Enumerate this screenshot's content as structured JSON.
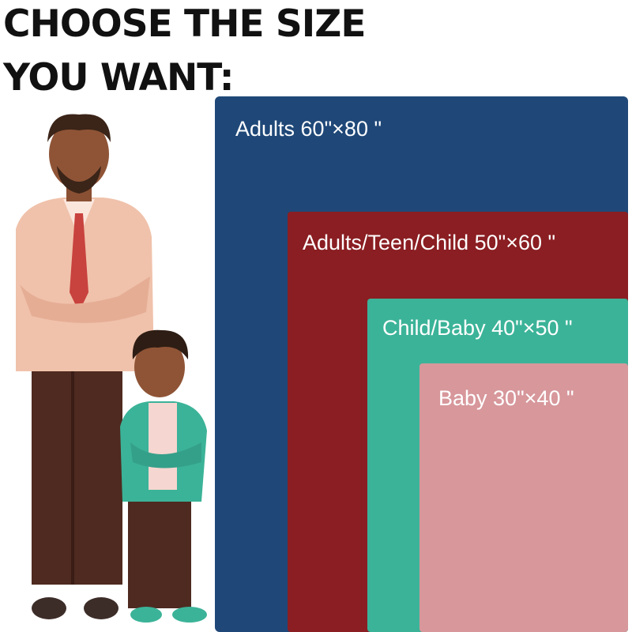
{
  "header": {
    "title": [
      "CHOOSE THE SIZE",
      "YOU WANT:"
    ]
  },
  "sizes": [
    {
      "label": "Adults 60\"×80 \""
    },
    {
      "label": "Adults/Teen/Child 50\"×60 \""
    },
    {
      "label": "Child/Baby 40\"×50 \""
    },
    {
      "label": "Baby 30\"×40 \""
    }
  ]
}
